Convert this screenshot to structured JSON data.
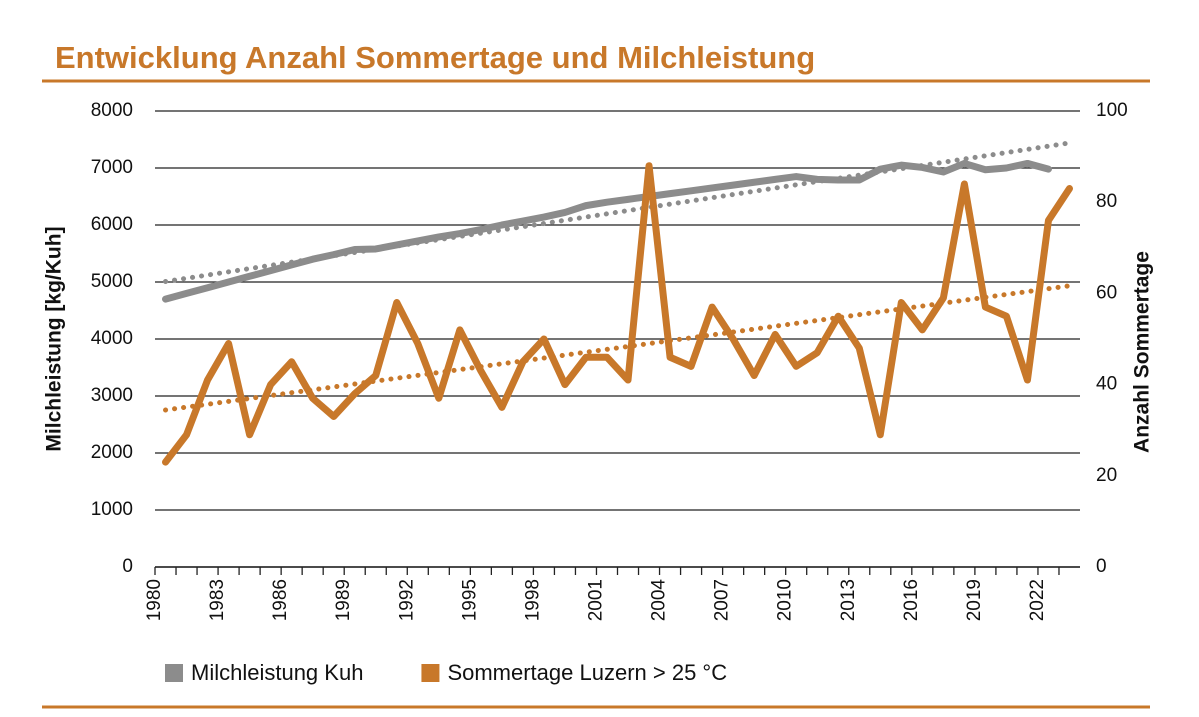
{
  "chart_data": {
    "type": "line",
    "title": "Entwicklung Anzahl Sommertage und Milchleistung",
    "ylabel": "Milchleistung [kg/Kuh]",
    "y2label": "Anzahl Sommertage",
    "categories": [
      "1980",
      null,
      null,
      "1983",
      null,
      null,
      "1986",
      null,
      null,
      "1989",
      null,
      null,
      "1992",
      null,
      null,
      "1995",
      null,
      null,
      "1998",
      null,
      null,
      "2001",
      null,
      null,
      "2004",
      null,
      null,
      "2007",
      null,
      null,
      "2010",
      null,
      null,
      "2013",
      null,
      null,
      "2016",
      null,
      null,
      "2019",
      null,
      null,
      "2022",
      null
    ],
    "ylim": [
      0,
      8000
    ],
    "yticks": [
      0,
      1000,
      2000,
      3000,
      4000,
      5000,
      6000,
      7000,
      8000
    ],
    "y2lim": [
      0,
      100
    ],
    "y2ticks": [
      0,
      20,
      40,
      60,
      80,
      100
    ],
    "grid": true,
    "legend": "bottom",
    "trendline": true,
    "series": [
      {
        "name": "Milchleistung Kuh",
        "color": "#8c8c8c",
        "axis": "y",
        "values": [
          4700,
          4800,
          4900,
          5000,
          5100,
          5200,
          5300,
          5400,
          5480,
          5570,
          5580,
          5650,
          5720,
          5790,
          5850,
          5920,
          6000,
          6070,
          6140,
          6220,
          6340,
          6400,
          6450,
          6500,
          6550,
          6600,
          6650,
          6700,
          6750,
          6800,
          6850,
          6800,
          6790,
          6790,
          6980,
          7050,
          7010,
          6930,
          7080,
          6970,
          7000,
          7080,
          6980,
          null
        ]
      },
      {
        "name": "Sommertage Luzern > 25 °C",
        "color": "#c8782a",
        "axis": "y2",
        "values": [
          23,
          29,
          41,
          49,
          29,
          40,
          45,
          37,
          33,
          38,
          42,
          58,
          49,
          37,
          52,
          43,
          35,
          45,
          50,
          40,
          46,
          46,
          41,
          88,
          46,
          44,
          57,
          50,
          42,
          51,
          44,
          47,
          55,
          48,
          29,
          58,
          52,
          59,
          84,
          57,
          55,
          41,
          76,
          83
        ]
      }
    ]
  }
}
